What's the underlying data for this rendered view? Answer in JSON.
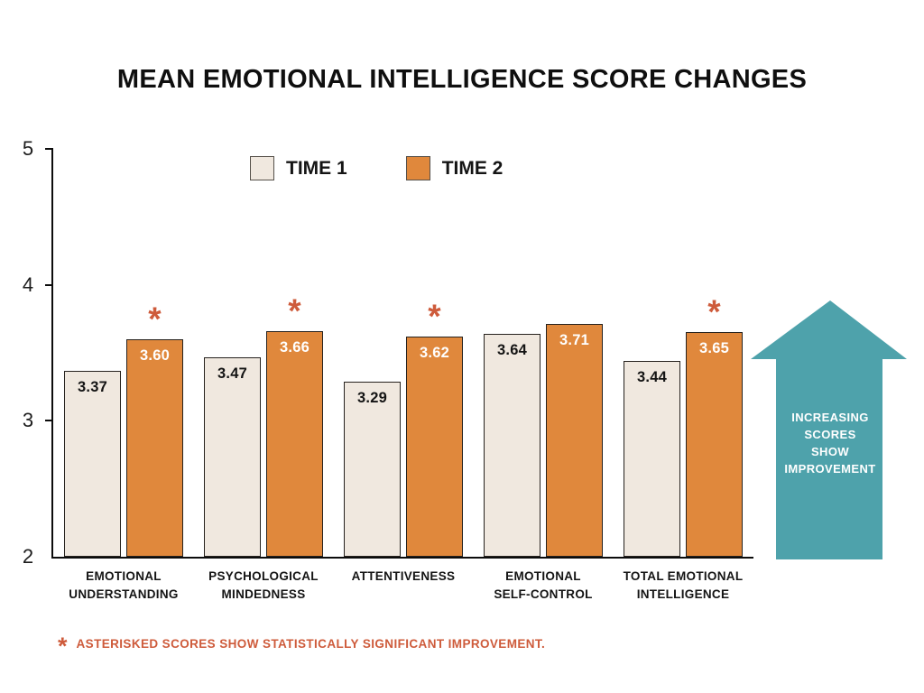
{
  "chart_data": {
    "type": "bar",
    "title": "MEAN EMOTIONAL INTELLIGENCE SCORE CHANGES",
    "categories": [
      "EMOTIONAL\nUNDERSTANDING",
      "PSYCHOLOGICAL\nMINDEDNESS",
      "ATTENTIVENESS",
      "EMOTIONAL\nSELF-CONTROL",
      "TOTAL EMOTIONAL\nINTELLIGENCE"
    ],
    "series": [
      {
        "name": "TIME 1",
        "color": "#F0E8DF",
        "label_color": "#141414",
        "values": [
          3.37,
          3.47,
          3.29,
          3.64,
          3.44
        ]
      },
      {
        "name": "TIME 2",
        "color": "#E0883C",
        "label_color": "#ffffff",
        "values": [
          3.6,
          3.66,
          3.62,
          3.71,
          3.65
        ]
      }
    ],
    "significant_time2": [
      true,
      true,
      true,
      false,
      true
    ],
    "significance_marker": "*",
    "value_decimals": 2,
    "ylim": [
      2,
      5
    ],
    "yticks": [
      5,
      4,
      3,
      2
    ],
    "grid": false,
    "legend_position": "top-center",
    "footnote": "ASTERISKED SCORES SHOW STATISTICALLY SIGNIFICANT IMPROVEMENT.",
    "annotation": {
      "arrow_text": "INCREASING\nSCORES\nSHOW\nIMPROVEMENT",
      "arrow_color": "#4EA2AB"
    },
    "colors": {
      "orange": "#E0883C",
      "cream": "#F0E8DF",
      "teal": "#4EA2AB",
      "significance_red": "#CE5B3B",
      "axis_black": "#0c0c0c"
    }
  }
}
